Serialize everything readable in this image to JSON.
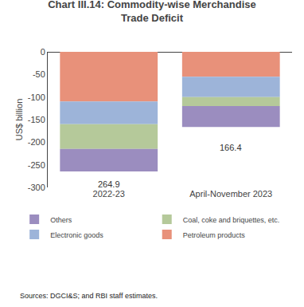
{
  "chart_data": {
    "type": "bar",
    "title": "Chart III.14: Commodity-wise Merchandise\nTrade Deficit",
    "categories": [
      "2022-23",
      "April-November 2023"
    ],
    "series": [
      {
        "name": "Petroleum products",
        "color": "#e8917a",
        "values": [
          -110.0,
          -55.0
        ]
      },
      {
        "name": "Electronic goods",
        "color": "#9db4d9",
        "values": [
          -50.0,
          -45.0
        ]
      },
      {
        "name": "Coal, coke and briquettes, etc.",
        "color": "#b5c99a",
        "values": [
          -55.0,
          -20.0
        ]
      },
      {
        "name": "Others",
        "color": "#9b8dbf",
        "values": [
          -49.9,
          -46.4
        ]
      }
    ],
    "stacked": true,
    "ylabel": "US$ billion",
    "ylim": [
      -300,
      0
    ],
    "yticks": [
      0,
      -50,
      -100,
      -150,
      -200,
      -250,
      -300
    ],
    "grid": false,
    "legend": "bottom",
    "annotations": [
      {
        "x": "2022-23",
        "y": -278,
        "text": "264.9"
      },
      {
        "x": "April-November 2023",
        "y": -198,
        "text": "166.4"
      }
    ],
    "source": "Sources: DGCI&S; and RBI staff estimates."
  }
}
